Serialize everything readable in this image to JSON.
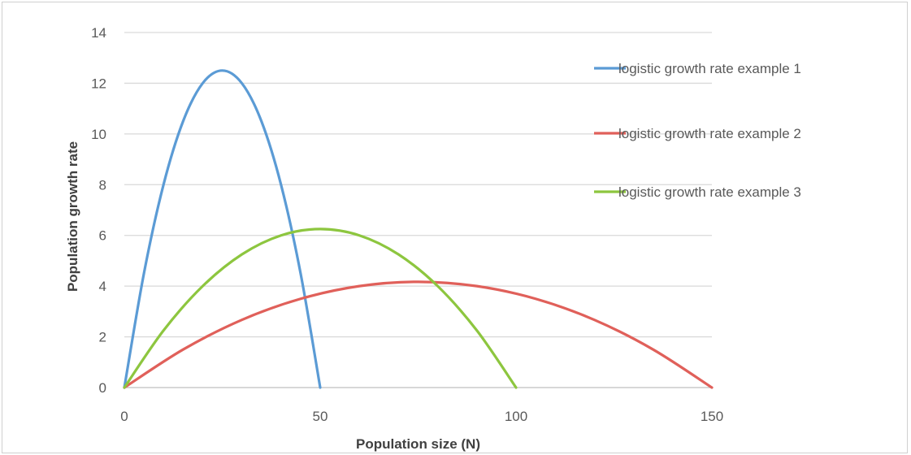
{
  "chart_data": {
    "type": "line",
    "title": "",
    "xlabel": "Population size (N)",
    "ylabel": "Population growth rate",
    "xlim": [
      0,
      150
    ],
    "ylim": [
      0,
      14
    ],
    "x_ticks": [
      0,
      50,
      100,
      150
    ],
    "y_ticks": [
      0,
      2,
      4,
      6,
      8,
      10,
      12,
      14
    ],
    "grid": "horizontal",
    "legend_position": "right",
    "series": [
      {
        "name": "logistic growth rate example 1",
        "color": "#5b9bd5",
        "x": [
          0,
          5,
          10,
          15,
          20,
          25,
          30,
          35,
          40,
          45,
          50
        ],
        "y": [
          0,
          4.5,
          8,
          10.5,
          12,
          12.5,
          12,
          10.5,
          8,
          4.5,
          0
        ]
      },
      {
        "name": "logistic growth rate example 2",
        "color": "#e0605a",
        "x": [
          0,
          15,
          30,
          45,
          60,
          75,
          90,
          105,
          120,
          135,
          150
        ],
        "y": [
          0,
          1.5,
          2.67,
          3.5,
          4,
          4.17,
          4,
          3.5,
          2.67,
          1.5,
          0
        ]
      },
      {
        "name": "logistic growth rate example 3",
        "color": "#8dc63f",
        "x": [
          0,
          10,
          20,
          30,
          40,
          50,
          60,
          70,
          80,
          90,
          100
        ],
        "y": [
          0,
          2.25,
          4,
          5.25,
          6,
          6.25,
          6,
          5.25,
          4,
          2.25,
          0
        ]
      }
    ]
  }
}
